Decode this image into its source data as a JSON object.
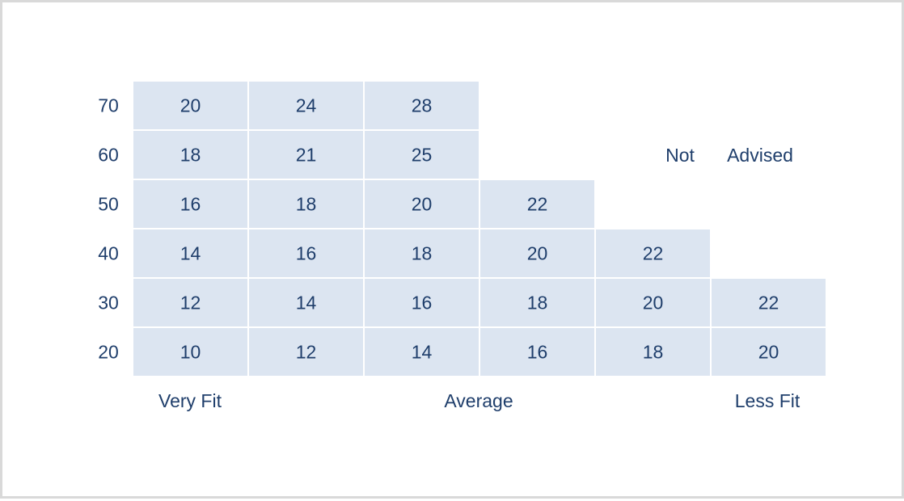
{
  "chart_data": {
    "type": "table",
    "row_labels": [
      "70",
      "60",
      "50",
      "40",
      "30",
      "20"
    ],
    "rows": [
      [
        20,
        24,
        28,
        null,
        null,
        null
      ],
      [
        18,
        21,
        25,
        null,
        null,
        null
      ],
      [
        16,
        18,
        20,
        22,
        null,
        null
      ],
      [
        14,
        16,
        18,
        20,
        22,
        null
      ],
      [
        12,
        14,
        16,
        18,
        20,
        22
      ],
      [
        10,
        12,
        14,
        16,
        18,
        20
      ]
    ],
    "column_groups": [
      "Very Fit",
      "Average",
      "Less Fit"
    ],
    "annotation": [
      "Not",
      "Advised"
    ],
    "cell_color": "#dce5f1",
    "text_color": "#1f3e6b"
  }
}
